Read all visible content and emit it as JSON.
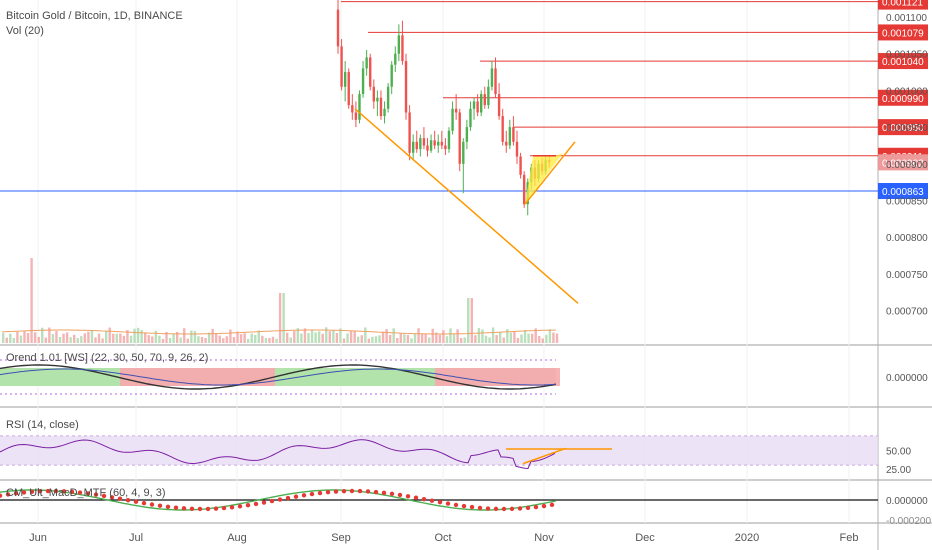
{
  "legend": {
    "symbol_line": "Bitcoin Gold / Bitcoin, 1D, BINANCE",
    "volume_line": "Vol (20)"
  },
  "panes": {
    "osc_title": "Orend 1.01 [WS] (22, 30, 50, 70, 9, 26, 2)",
    "rsi_title": "RSI (14, close)",
    "macd_title": "CM_Ult_MacD_MTF (60, 4, 9, 3)"
  },
  "colors": {
    "up": "#4caf50",
    "down": "#ef5350",
    "resistance": "#e53935",
    "support": "#2962ff",
    "trendline": "#ff9800",
    "wedge_fill": "#ffeb3b",
    "rsi_line": "#7b1fa2",
    "rsi_band": "#e9dcf5"
  },
  "chart_data": [
    {
      "type": "candlestick",
      "name": "price",
      "ylim": [
        0.00066,
        0.00113
      ],
      "x_labels": [
        "Jun",
        "Jul",
        "Aug",
        "Sep",
        "Oct",
        "Nov",
        "Dec",
        "2020",
        "Feb"
      ],
      "y_ticks": [
        "0.001100",
        "0.001050",
        "0.001000",
        "0.000950",
        "0.000900",
        "0.000850",
        "0.000800",
        "0.000750",
        "0.000700"
      ],
      "visible_candle_segment": "Sep – early Nov (candles before Sep are above the visible range)",
      "candles": [
        {
          "o": 0.00111,
          "h": 0.001125,
          "l": 0.00105,
          "c": 0.00106
        },
        {
          "o": 0.00106,
          "h": 0.00107,
          "l": 0.001,
          "c": 0.001005
        },
        {
          "o": 0.001005,
          "h": 0.00104,
          "l": 0.000985,
          "c": 0.001025
        },
        {
          "o": 0.001025,
          "h": 0.00103,
          "l": 0.000975,
          "c": 0.00098
        },
        {
          "o": 0.00098,
          "h": 0.000995,
          "l": 0.00096,
          "c": 0.00097
        },
        {
          "o": 0.00097,
          "h": 0.000985,
          "l": 0.00095,
          "c": 0.00096
        },
        {
          "o": 0.00096,
          "h": 0.001,
          "l": 0.000955,
          "c": 0.000995
        },
        {
          "o": 0.000995,
          "h": 0.00104,
          "l": 0.00099,
          "c": 0.00103
        },
        {
          "o": 0.00103,
          "h": 0.001055,
          "l": 0.00102,
          "c": 0.001045
        },
        {
          "o": 0.001045,
          "h": 0.00105,
          "l": 0.001,
          "c": 0.001005
        },
        {
          "o": 0.001005,
          "h": 0.001015,
          "l": 0.000975,
          "c": 0.000985
        },
        {
          "o": 0.000985,
          "h": 0.001,
          "l": 0.000965,
          "c": 0.00099
        },
        {
          "o": 0.00099,
          "h": 0.001,
          "l": 0.00096,
          "c": 0.000965
        },
        {
          "o": 0.000965,
          "h": 0.000985,
          "l": 0.000955,
          "c": 0.000975
        },
        {
          "o": 0.000975,
          "h": 0.00101,
          "l": 0.00097,
          "c": 0.001005
        },
        {
          "o": 0.001005,
          "h": 0.00104,
          "l": 0.000995,
          "c": 0.001035
        },
        {
          "o": 0.001035,
          "h": 0.00106,
          "l": 0.001025,
          "c": 0.00105
        },
        {
          "o": 0.00105,
          "h": 0.00109,
          "l": 0.00104,
          "c": 0.001075
        },
        {
          "o": 0.001075,
          "h": 0.001095,
          "l": 0.001035,
          "c": 0.00104
        },
        {
          "o": 0.00104,
          "h": 0.00105,
          "l": 0.00096,
          "c": 0.00097
        },
        {
          "o": 0.00097,
          "h": 0.00098,
          "l": 0.000905,
          "c": 0.000915
        },
        {
          "o": 0.000915,
          "h": 0.00094,
          "l": 0.000905,
          "c": 0.00093
        },
        {
          "o": 0.00093,
          "h": 0.000945,
          "l": 0.000915,
          "c": 0.00092
        },
        {
          "o": 0.00092,
          "h": 0.00094,
          "l": 0.00091,
          "c": 0.000935
        },
        {
          "o": 0.000935,
          "h": 0.00095,
          "l": 0.00092,
          "c": 0.000925
        },
        {
          "o": 0.000925,
          "h": 0.000935,
          "l": 0.00091,
          "c": 0.000918
        },
        {
          "o": 0.000918,
          "h": 0.00094,
          "l": 0.000915,
          "c": 0.000932
        },
        {
          "o": 0.000932,
          "h": 0.000945,
          "l": 0.00092,
          "c": 0.000925
        },
        {
          "o": 0.000925,
          "h": 0.00094,
          "l": 0.000915,
          "c": 0.00093
        },
        {
          "o": 0.00093,
          "h": 0.000945,
          "l": 0.00092,
          "c": 0.000925
        },
        {
          "o": 0.000925,
          "h": 0.000935,
          "l": 0.000912,
          "c": 0.00092
        },
        {
          "o": 0.00092,
          "h": 0.00095,
          "l": 0.000915,
          "c": 0.000945
        },
        {
          "o": 0.000945,
          "h": 0.000985,
          "l": 0.00094,
          "c": 0.000975
        },
        {
          "o": 0.000975,
          "h": 0.000995,
          "l": 0.00096,
          "c": 0.00097
        },
        {
          "o": 0.00097,
          "h": 0.000975,
          "l": 0.00089,
          "c": 0.0009
        },
        {
          "o": 0.0009,
          "h": 0.000935,
          "l": 0.00086,
          "c": 0.00093
        },
        {
          "o": 0.00093,
          "h": 0.00096,
          "l": 0.00092,
          "c": 0.00095
        },
        {
          "o": 0.00095,
          "h": 0.000985,
          "l": 0.000945,
          "c": 0.000975
        },
        {
          "o": 0.000975,
          "h": 0.00099,
          "l": 0.00096,
          "c": 0.000985
        },
        {
          "o": 0.000985,
          "h": 0.000995,
          "l": 0.000965,
          "c": 0.00097
        },
        {
          "o": 0.00097,
          "h": 0.001,
          "l": 0.000965,
          "c": 0.000995
        },
        {
          "o": 0.000995,
          "h": 0.001005,
          "l": 0.000975,
          "c": 0.00098
        },
        {
          "o": 0.00098,
          "h": 0.001015,
          "l": 0.000975,
          "c": 0.001005
        },
        {
          "o": 0.001005,
          "h": 0.00104,
          "l": 0.001,
          "c": 0.00103
        },
        {
          "o": 0.00103,
          "h": 0.001045,
          "l": 0.00099,
          "c": 0.000995
        },
        {
          "o": 0.000995,
          "h": 0.00101,
          "l": 0.00096,
          "c": 0.000965
        },
        {
          "o": 0.000965,
          "h": 0.000975,
          "l": 0.000925,
          "c": 0.00093
        },
        {
          "o": 0.00093,
          "h": 0.000945,
          "l": 0.000915,
          "c": 0.000925
        },
        {
          "o": 0.000925,
          "h": 0.00096,
          "l": 0.00092,
          "c": 0.00095
        },
        {
          "o": 0.00095,
          "h": 0.000965,
          "l": 0.000925,
          "c": 0.00093
        },
        {
          "o": 0.00093,
          "h": 0.000945,
          "l": 0.0009,
          "c": 0.00091
        },
        {
          "o": 0.00091,
          "h": 0.000915,
          "l": 0.00088,
          "c": 0.000885
        },
        {
          "o": 0.000885,
          "h": 0.00089,
          "l": 0.00084,
          "c": 0.000845
        },
        {
          "o": 0.000845,
          "h": 0.00088,
          "l": 0.00083,
          "c": 0.000875
        },
        {
          "o": 0.000875,
          "h": 0.0009,
          "l": 0.000865,
          "c": 0.000895
        },
        {
          "o": 0.000895,
          "h": 0.000905,
          "l": 0.00087,
          "c": 0.00088
        },
        {
          "o": 0.00088,
          "h": 0.000905,
          "l": 0.000875,
          "c": 0.0009
        },
        {
          "o": 0.0009,
          "h": 0.000908,
          "l": 0.000885,
          "c": 0.00089
        },
        {
          "o": 0.00089,
          "h": 0.00091,
          "l": 0.000885,
          "c": 0.000905
        },
        {
          "o": 0.000905,
          "h": 0.000912,
          "l": 0.000895,
          "c": 0.000902
        }
      ],
      "horizontal_levels": [
        {
          "value": 0.001121,
          "label": "0.001121",
          "kind": "resistance"
        },
        {
          "value": 0.001079,
          "label": "0.001079",
          "kind": "resistance"
        },
        {
          "value": 0.00104,
          "label": "0.001040",
          "kind": "resistance"
        },
        {
          "value": 0.00099,
          "label": "0.000990",
          "kind": "resistance"
        },
        {
          "value": 0.00095,
          "label": "0.000950",
          "kind": "resistance"
        },
        {
          "value": 0.000911,
          "label": "0.000911",
          "kind": "resistance"
        },
        {
          "value": 0.000902,
          "label": "0.000902",
          "kind": "last_price"
        },
        {
          "value": 0.000863,
          "label": "0.000863",
          "kind": "support"
        }
      ],
      "annotations": [
        {
          "kind": "descending_trendline",
          "from_price": 0.000975,
          "to_price": 0.00071
        },
        {
          "kind": "rising_wedge",
          "apex_price": 0.00093,
          "low_price": 0.000845,
          "top_price": 0.000911
        }
      ]
    },
    {
      "type": "bar",
      "name": "Vol (20)",
      "note": "volume histogram with orange 20-period moving average"
    },
    {
      "type": "line",
      "name": "Orend 1.01",
      "y_ticks": [
        "0.000000"
      ],
      "series": [
        "green/red histogram",
        "dark oscillator line",
        "blue signal line"
      ]
    },
    {
      "type": "line",
      "name": "RSI",
      "y_ticks": [
        "50.00",
        "25.00"
      ],
      "band": [
        30,
        70
      ],
      "annotations": [
        "orange horizontal level near RSI 50",
        "rising orange trendline under RSI"
      ]
    },
    {
      "type": "line",
      "name": "MACD",
      "y_ticks": [
        "0.000000",
        "-0.000200"
      ],
      "series": [
        "MACD (green/red)",
        "signal (dots)"
      ]
    }
  ]
}
